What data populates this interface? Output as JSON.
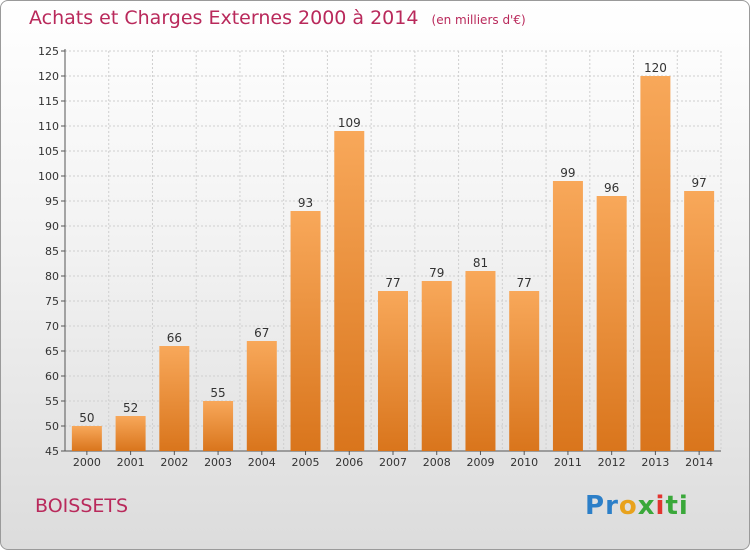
{
  "colors": {
    "title": "#b9295b",
    "bar_light": "#f8a85a",
    "bar_dark": "#d9751c",
    "grid": "#cfcfcf"
  },
  "header": {
    "title": "Achats et Charges Externes 2000 à 2014",
    "unit": "(en milliers d'€)"
  },
  "footer": {
    "place": "BOISSETS",
    "logo_letters": [
      "P",
      "r",
      "o",
      "x",
      "i",
      "ti"
    ]
  },
  "chart_data": {
    "type": "bar",
    "categories": [
      "2000",
      "2001",
      "2002",
      "2003",
      "2004",
      "2005",
      "2006",
      "2007",
      "2008",
      "2009",
      "2010",
      "2011",
      "2012",
      "2013",
      "2014"
    ],
    "values": [
      50,
      52,
      66,
      55,
      67,
      93,
      109,
      77,
      79,
      81,
      77,
      99,
      96,
      120,
      97
    ],
    "title": "Achats et Charges Externes 2000 à 2014",
    "xlabel": "",
    "ylabel": "",
    "ylim": [
      45,
      125
    ],
    "ytick_step": 5,
    "grid": true,
    "data_labels": true
  }
}
